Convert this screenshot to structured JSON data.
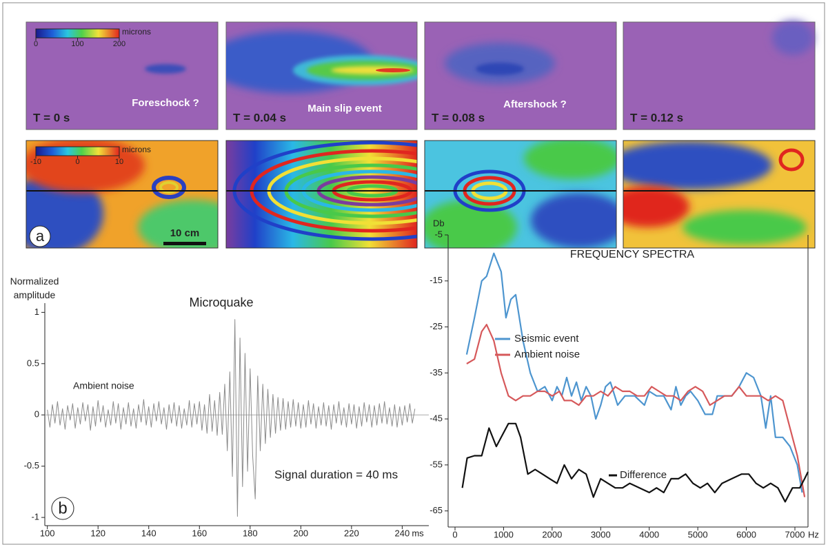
{
  "panel_a": {
    "label": "a",
    "scale_bar": "10 cm",
    "colorbars": [
      {
        "unit": "microns",
        "range": [
          0,
          200
        ],
        "ticks": [
          0,
          100,
          200
        ]
      },
      {
        "unit": "microns",
        "range": [
          -10,
          10
        ],
        "ticks": [
          -10,
          0,
          10
        ]
      }
    ],
    "frames": [
      {
        "time": "T = 0 s",
        "annotation": "Foreschock ?"
      },
      {
        "time": "T = 0.04 s",
        "annotation": "Main slip event"
      },
      {
        "time": "T = 0.08 s",
        "annotation": "Aftershock ?"
      },
      {
        "time": "T = 0.12 s"
      }
    ]
  },
  "chart_data": [
    {
      "type": "line",
      "label": "b",
      "title": "Microquake",
      "y_label": "Normalized amplitude",
      "x_unit": "ms",
      "annotations": [
        "Ambient noise",
        "Signal duration = 40 ms"
      ],
      "xlim": [
        99,
        250.5
      ],
      "xticks": [
        100,
        120,
        140,
        160,
        180,
        200,
        220,
        240
      ],
      "ylim": [
        -1.08,
        1.09
      ],
      "yticks": [
        1,
        0.5,
        0,
        -0.5,
        -1
      ],
      "x": [
        100,
        101,
        102,
        103,
        104,
        105,
        106,
        107,
        108,
        109,
        110,
        111,
        112,
        113,
        114,
        115,
        116,
        117,
        118,
        119,
        120,
        121,
        122,
        123,
        124,
        125,
        126,
        127,
        128,
        129,
        130,
        131,
        132,
        133,
        134,
        135,
        136,
        137,
        138,
        139,
        140,
        141,
        142,
        143,
        144,
        145,
        146,
        147,
        148,
        149,
        150,
        151,
        152,
        153,
        154,
        155,
        156,
        157,
        158,
        159,
        160,
        161,
        162,
        163,
        164,
        165,
        166,
        167,
        168,
        169,
        170,
        171,
        172,
        173,
        174,
        175,
        176,
        177,
        178,
        179,
        180,
        181,
        182,
        183,
        184,
        185,
        186,
        187,
        188,
        189,
        190,
        191,
        192,
        193,
        194,
        195,
        196,
        197,
        198,
        199,
        200,
        201,
        202,
        203,
        204,
        205,
        206,
        207,
        208,
        209,
        210,
        211,
        212,
        213,
        214,
        215,
        216,
        217,
        218,
        219,
        220,
        221,
        222,
        223,
        224,
        225,
        226,
        227,
        228,
        229,
        230,
        231,
        232,
        233,
        234,
        235,
        236,
        237,
        238,
        239,
        240,
        241,
        242,
        243,
        244,
        245
      ],
      "series": [
        {
          "color": "#8a8a8a",
          "values": [
            0.05,
            -0.12,
            0.1,
            -0.08,
            0.13,
            -0.1,
            0.06,
            -0.14,
            0.09,
            -0.05,
            0.11,
            -0.13,
            0.07,
            -0.09,
            0.12,
            -0.06,
            0.1,
            -0.15,
            0.08,
            -0.11,
            0.14,
            -0.07,
            0.09,
            -0.12,
            0.05,
            -0.1,
            0.13,
            -0.08,
            0.11,
            -0.14,
            0.07,
            -0.09,
            0.12,
            -0.11,
            0.06,
            -0.13,
            0.1,
            -0.07,
            0.15,
            -0.1,
            0.08,
            -0.12,
            0.11,
            -0.06,
            0.13,
            -0.09,
            0.07,
            -0.14,
            0.1,
            -0.08,
            0.12,
            -0.11,
            0.09,
            -0.13,
            0.06,
            -0.1,
            0.14,
            -0.12,
            0.11,
            -0.09,
            0.13,
            -0.15,
            0.1,
            -0.18,
            0.2,
            -0.16,
            0.14,
            -0.2,
            0.22,
            -0.19,
            0.3,
            -0.35,
            0.42,
            -0.6,
            0.93,
            -0.99,
            0.75,
            -0.7,
            0.6,
            -0.55,
            0.45,
            -0.4,
            -0.82,
            0.38,
            -0.35,
            0.3,
            -0.28,
            0.25,
            -0.22,
            0.2,
            -0.18,
            0.17,
            -0.15,
            0.16,
            -0.14,
            0.13,
            -0.12,
            0.15,
            -0.11,
            0.12,
            -0.13,
            0.1,
            -0.12,
            0.14,
            -0.09,
            0.11,
            -0.13,
            0.08,
            -0.1,
            0.12,
            -0.11,
            0.09,
            -0.14,
            0.1,
            -0.08,
            0.13,
            -0.1,
            0.07,
            -0.12,
            0.11,
            -0.09,
            0.1,
            -0.13,
            0.08,
            -0.11,
            0.12,
            -0.07,
            0.1,
            -0.12,
            0.09,
            -0.1,
            0.11,
            -0.08,
            0.13,
            -0.09,
            0.07,
            -0.11,
            0.1,
            -0.12,
            0.08,
            -0.1,
            0.09,
            -0.07,
            0.11,
            -0.08,
            0.06
          ]
        }
      ]
    },
    {
      "type": "line",
      "title": "FREQUENCY SPECTRA",
      "y_label": "Db",
      "x_unit": "Hz",
      "xlim": [
        0,
        7270
      ],
      "xticks": [
        0,
        1000,
        2000,
        3000,
        4000,
        5000,
        6000,
        7000
      ],
      "ylim": [
        -68.5,
        -5
      ],
      "yticks": [
        -5,
        -15,
        -25,
        -35,
        -45,
        -55,
        -65
      ],
      "series": [
        {
          "name": "Seismic event",
          "color": "#4d95cf",
          "x": [
            240,
            400,
            550,
            650,
            800,
            950,
            1050,
            1150,
            1250,
            1400,
            1550,
            1700,
            1850,
            2000,
            2100,
            2200,
            2300,
            2400,
            2500,
            2600,
            2700,
            2800,
            2900,
            3000,
            3100,
            3200,
            3350,
            3500,
            3700,
            3900,
            4000,
            4150,
            4300,
            4450,
            4550,
            4650,
            4750,
            4850,
            5000,
            5150,
            5300,
            5400,
            5550,
            5700,
            5850,
            6000,
            6150,
            6300,
            6400,
            6500,
            6600,
            6750,
            6900,
            7050,
            7150
          ],
          "values": [
            -31,
            -23,
            -15,
            -14,
            -9,
            -13,
            -23,
            -19,
            -18,
            -28,
            -35,
            -39,
            -38,
            -41,
            -38,
            -40,
            -36,
            -40,
            -37,
            -41,
            -38,
            -40,
            -45,
            -42,
            -38,
            -37,
            -42,
            -40,
            -40,
            -42,
            -39,
            -40,
            -40,
            -43,
            -38,
            -42,
            -40,
            -39,
            -41,
            -44,
            -44,
            -40,
            -40,
            -40,
            -38,
            -35,
            -36,
            -40,
            -47,
            -40,
            -49,
            -49,
            -51,
            -55,
            -61
          ]
        },
        {
          "name": "Ambient noise",
          "color": "#d6585a",
          "x": [
            240,
            400,
            550,
            650,
            800,
            950,
            1100,
            1250,
            1400,
            1550,
            1700,
            1850,
            2000,
            2150,
            2250,
            2400,
            2550,
            2700,
            2850,
            3000,
            3150,
            3300,
            3450,
            3600,
            3750,
            3900,
            4050,
            4200,
            4350,
            4500,
            4650,
            4800,
            4950,
            5100,
            5250,
            5400,
            5550,
            5700,
            5850,
            6000,
            6150,
            6300,
            6450,
            6600,
            6750,
            6900,
            7050,
            7200
          ],
          "values": [
            -33,
            -32,
            -26,
            -24.5,
            -28,
            -35,
            -40,
            -41,
            -40,
            -40,
            -39,
            -39,
            -40,
            -39,
            -41,
            -41,
            -42,
            -40,
            -40,
            -39,
            -40,
            -38,
            -39,
            -39,
            -40,
            -40,
            -38,
            -39,
            -40,
            -40,
            -41,
            -39,
            -38,
            -39,
            -42,
            -41,
            -40,
            -40,
            -38,
            -40,
            -40,
            -40,
            -41,
            -40,
            -41,
            -47,
            -53,
            -62
          ]
        },
        {
          "name": "Difference",
          "color": "#111111",
          "x": [
            150,
            250,
            400,
            550,
            700,
            850,
            950,
            1100,
            1250,
            1350,
            1500,
            1650,
            1800,
            1950,
            2100,
            2250,
            2400,
            2550,
            2700,
            2850,
            3000,
            3150,
            3300,
            3450,
            3600,
            3800,
            4000,
            4150,
            4300,
            4450,
            4600,
            4750,
            4900,
            5050,
            5200,
            5350,
            5500,
            5700,
            5900,
            6050,
            6200,
            6350,
            6500,
            6650,
            6800,
            6950,
            7100,
            7200,
            7270
          ],
          "values": [
            -60,
            -53.5,
            -53,
            -53,
            -47,
            -51,
            -49,
            -46,
            -46,
            -49,
            -57,
            -56,
            -57,
            -58,
            -59,
            -55,
            -58,
            -56,
            -57,
            -62,
            -58,
            -59,
            -60,
            -60,
            -59,
            -60,
            -61,
            -60,
            -61,
            -58,
            -58,
            -57,
            -59,
            -60,
            -59,
            -61,
            -59,
            -58,
            -57,
            -57,
            -59,
            -60,
            -59,
            -60,
            -63,
            -60,
            -60,
            -58,
            -56.5
          ]
        }
      ]
    }
  ]
}
